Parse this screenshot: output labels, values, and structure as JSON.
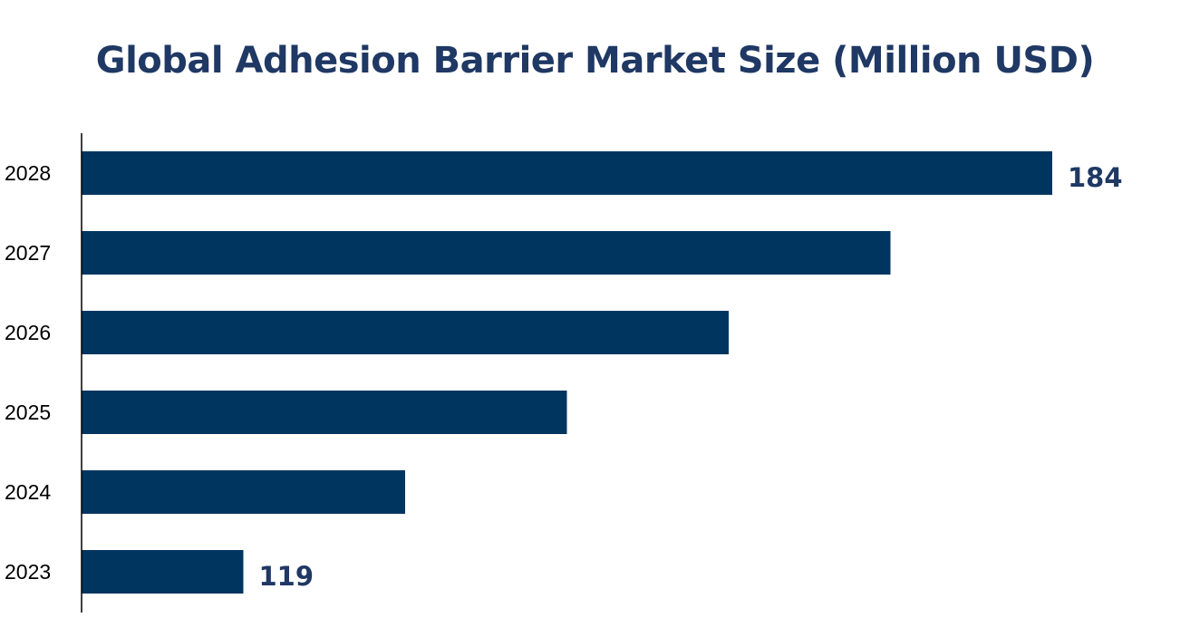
{
  "chart_data": {
    "type": "bar",
    "orientation": "horizontal",
    "title": "Global Adhesion Barrier Market Size (Million USD)",
    "categories": [
      "2028",
      "2027",
      "2026",
      "2025",
      "2024",
      "2023"
    ],
    "values": [
      184,
      171,
      158,
      145,
      132,
      119
    ],
    "data_labels": [
      {
        "category": "2028",
        "text": "184"
      },
      {
        "category": "2023",
        "text": "119"
      }
    ],
    "xlim": [
      106,
      190
    ],
    "grid": false,
    "legend": "none",
    "colors": {
      "bar": "#003560",
      "title": "#1f3864",
      "label": "#1f3864",
      "axis": "#000000"
    }
  }
}
